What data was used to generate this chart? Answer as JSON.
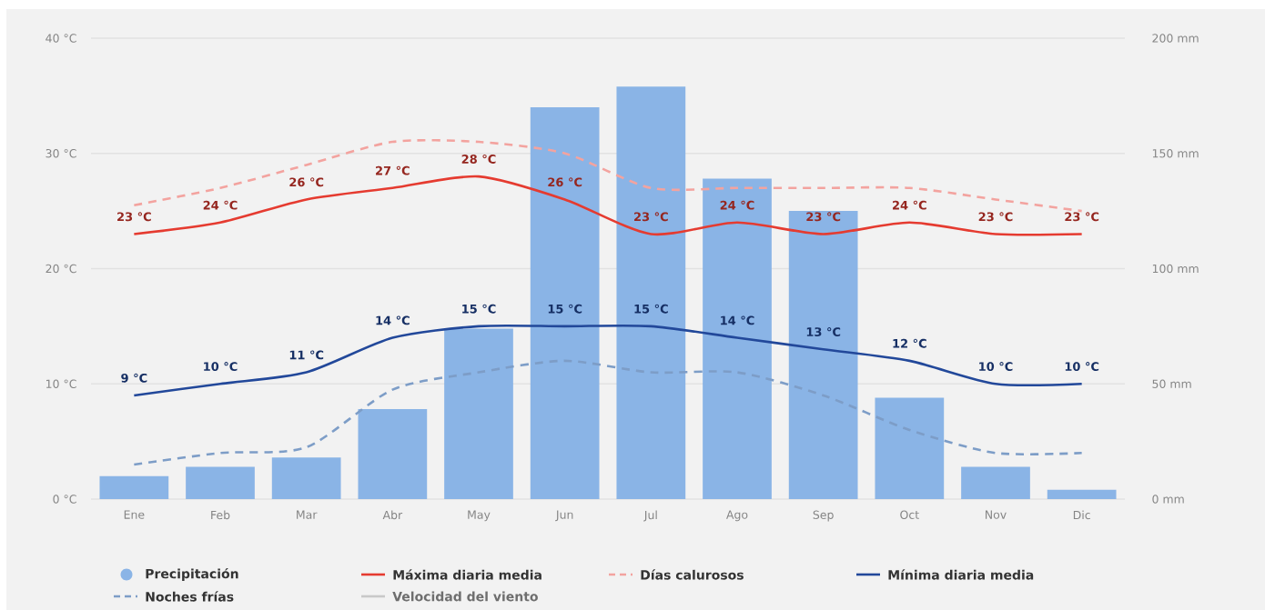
{
  "chart_data": {
    "type": "bar",
    "categories": [
      "Ene",
      "Feb",
      "Mar",
      "Abr",
      "May",
      "Jun",
      "Jul",
      "Ago",
      "Sep",
      "Oct",
      "Nov",
      "Dic"
    ],
    "series": [
      {
        "name": "Precipitación",
        "axis": "y2",
        "color": "#8ab4e6",
        "values": [
          10,
          14,
          18,
          39,
          74,
          170,
          179,
          139,
          125,
          44,
          14,
          4
        ]
      },
      {
        "name": "Máxima diaria media",
        "type": "line",
        "color": "#e53b30",
        "values": [
          23,
          24,
          26,
          27,
          28,
          26,
          23,
          24,
          23,
          24,
          23,
          23
        ],
        "value_labels": [
          "23 °C",
          "24 °C",
          "26 °C",
          "27 °C",
          "28 °C",
          "26 °C",
          "23 °C",
          "24 °C",
          "23 °C",
          "24 °C",
          "23 °C",
          "23 °C"
        ]
      },
      {
        "name": "Días calurosos",
        "type": "line",
        "line_style": "dashed",
        "color": "#f3a39f",
        "values": [
          25.5,
          27,
          29,
          31,
          31,
          30,
          27,
          27,
          27,
          27,
          26,
          25
        ]
      },
      {
        "name": "Mínima diaria media",
        "type": "line",
        "color": "#22489a",
        "values": [
          9,
          10,
          11,
          14,
          15,
          15,
          15,
          14,
          13,
          12,
          10,
          10
        ],
        "value_labels": [
          "9 °C",
          "10 °C",
          "11 °C",
          "14 °C",
          "15 °C",
          "15 °C",
          "15 °C",
          "14 °C",
          "13 °C",
          "12 °C",
          "10 °C",
          "10 °C"
        ]
      },
      {
        "name": "Noches frías",
        "type": "line",
        "line_style": "dashed",
        "color": "#7d9dc7",
        "values": [
          3,
          4,
          4.5,
          9.5,
          11,
          12,
          11,
          11,
          9,
          6,
          4,
          4
        ]
      },
      {
        "name": "Velocidad del viento",
        "type": "line",
        "color": "#c8c8c8",
        "values": [
          null,
          null,
          null,
          null,
          null,
          null,
          null,
          null,
          null,
          null,
          null,
          null
        ]
      }
    ],
    "ylim": [
      0,
      40
    ],
    "yticks": [
      {
        "value": 0,
        "label": "0 °C"
      },
      {
        "value": 10,
        "label": "10 °C"
      },
      {
        "value": 20,
        "label": "20 °C"
      },
      {
        "value": 30,
        "label": "30 °C"
      },
      {
        "value": 40,
        "label": "40 °C"
      }
    ],
    "y2lim": [
      0,
      200
    ],
    "y2ticks": [
      {
        "value": 0,
        "label": "0 mm"
      },
      {
        "value": 50,
        "label": "50 mm"
      },
      {
        "value": 100,
        "label": "100 mm"
      },
      {
        "value": 150,
        "label": "150 mm"
      },
      {
        "value": 200,
        "label": "200 mm"
      }
    ],
    "grid": "y",
    "legend": "bottom"
  }
}
